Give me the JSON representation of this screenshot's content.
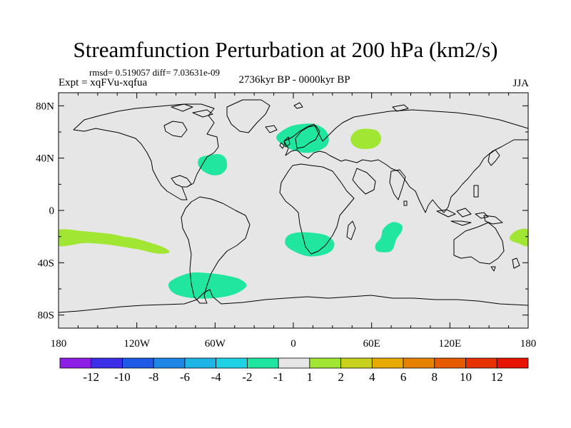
{
  "title": "Streamfunction Perturbation at 200 hPa (km2/s)",
  "stats_line": "rmsd= 0.519057 diff= 7.03631e-09",
  "experiment_line": "Expt = xqFVu-xqfua",
  "period_line": "2736kyr BP - 0000kyr BP",
  "season": "JJA",
  "chart_data": {
    "type": "map",
    "projection": "cylindrical-equidistant",
    "xlim": [
      -180,
      180
    ],
    "ylim": [
      -90,
      90
    ],
    "x_ticks": [
      {
        "value": -180,
        "label": "180"
      },
      {
        "value": -120,
        "label": "120W"
      },
      {
        "value": -60,
        "label": "60W"
      },
      {
        "value": 0,
        "label": "0"
      },
      {
        "value": 60,
        "label": "60E"
      },
      {
        "value": 120,
        "label": "120E"
      },
      {
        "value": 180,
        "label": "180"
      }
    ],
    "y_ticks": [
      {
        "value": 80,
        "label": "80N"
      },
      {
        "value": 40,
        "label": "40N"
      },
      {
        "value": 0,
        "label": "0"
      },
      {
        "value": -40,
        "label": "40S"
      },
      {
        "value": -80,
        "label": "80S"
      }
    ],
    "background_color": "#e6e6e6",
    "anomalies": [
      {
        "name": "north-atlantic-negative",
        "level": "-2 to -1",
        "color": "#20e6a0",
        "points": [
          [
            -72,
            40
          ],
          [
            -66,
            42
          ],
          [
            -57,
            43
          ],
          [
            -52,
            40
          ],
          [
            -51,
            33
          ],
          [
            -55,
            28
          ],
          [
            -62,
            27
          ],
          [
            -69,
            30
          ],
          [
            -73,
            35
          ]
        ]
      },
      {
        "name": "europe-negative",
        "level": "-2 to -1",
        "color": "#20e6a0",
        "points": [
          [
            -11,
            59
          ],
          [
            -3,
            64
          ],
          [
            6,
            66
          ],
          [
            16,
            66
          ],
          [
            24,
            62
          ],
          [
            27,
            56
          ],
          [
            26,
            50
          ],
          [
            20,
            46
          ],
          [
            10,
            44
          ],
          [
            0,
            46
          ],
          [
            -8,
            50
          ],
          [
            -13,
            55
          ]
        ]
      },
      {
        "name": "central-asia-positive",
        "level": "1 to 2",
        "color": "#a0e632",
        "points": [
          [
            45,
            58
          ],
          [
            51,
            62
          ],
          [
            61,
            62
          ],
          [
            66,
            59
          ],
          [
            67,
            53
          ],
          [
            62,
            48
          ],
          [
            53,
            47
          ],
          [
            47,
            49
          ],
          [
            44,
            53
          ]
        ]
      },
      {
        "name": "south-atlantic-negative",
        "level": "-2 to -1",
        "color": "#20e6a0",
        "points": [
          [
            -5,
            -20
          ],
          [
            2,
            -17
          ],
          [
            14,
            -17
          ],
          [
            25,
            -19
          ],
          [
            31,
            -24
          ],
          [
            30,
            -30
          ],
          [
            23,
            -34
          ],
          [
            11,
            -35
          ],
          [
            0,
            -31
          ],
          [
            -6,
            -26
          ]
        ]
      },
      {
        "name": "indian-ocean-negative",
        "level": "-2 to -1",
        "color": "#20e6a0",
        "points": [
          [
            69,
            -14
          ],
          [
            76,
            -9
          ],
          [
            83,
            -11
          ],
          [
            83,
            -16
          ],
          [
            79,
            -22
          ],
          [
            76,
            -30
          ],
          [
            71,
            -32
          ],
          [
            64,
            -31
          ],
          [
            63,
            -26
          ],
          [
            67,
            -21
          ]
        ]
      },
      {
        "name": "south-pacific-positive",
        "level": "1 to 2",
        "color": "#a0e632",
        "points": [
          [
            -180,
            -15
          ],
          [
            -160,
            -16
          ],
          [
            -140,
            -18
          ],
          [
            -130,
            -20
          ],
          [
            -123,
            -21
          ],
          [
            -112,
            -24
          ],
          [
            -100,
            -28
          ],
          [
            -95,
            -32
          ],
          [
            -104,
            -33
          ],
          [
            -118,
            -30
          ],
          [
            -130,
            -28
          ],
          [
            -143,
            -26
          ],
          [
            -160,
            -25
          ],
          [
            -180,
            -27
          ]
        ]
      },
      {
        "name": "western-pacific-positive",
        "level": "1 to 2",
        "color": "#a0e632",
        "points": [
          [
            166,
            -20
          ],
          [
            172,
            -15
          ],
          [
            180,
            -15
          ],
          [
            180,
            -27
          ],
          [
            172,
            -25
          ],
          [
            167,
            -23
          ]
        ]
      },
      {
        "name": "southern-ocean-negative",
        "level": "-2 to -1",
        "color": "#20e6a0",
        "points": [
          [
            -95,
            -55
          ],
          [
            -80,
            -48
          ],
          [
            -65,
            -48
          ],
          [
            -50,
            -50
          ],
          [
            -40,
            -53
          ],
          [
            -36,
            -58
          ],
          [
            -45,
            -64
          ],
          [
            -60,
            -67
          ],
          [
            -78,
            -67
          ],
          [
            -92,
            -63
          ]
        ]
      }
    ],
    "colorbar": {
      "labels": [
        "-12",
        "-10",
        "-8",
        "-6",
        "-4",
        "-2",
        "-1",
        "1",
        "2",
        "4",
        "6",
        "8",
        "10",
        "12"
      ],
      "colors": [
        "#8c1ee6",
        "#3c2de6",
        "#1e5ae6",
        "#1e87e6",
        "#1eb4e6",
        "#1ed2e6",
        "#1ee6a0",
        "#e6e6e6",
        "#a0e632",
        "#c8d21e",
        "#e6aa00",
        "#e68200",
        "#e65a00",
        "#e63200",
        "#e61400"
      ]
    }
  }
}
